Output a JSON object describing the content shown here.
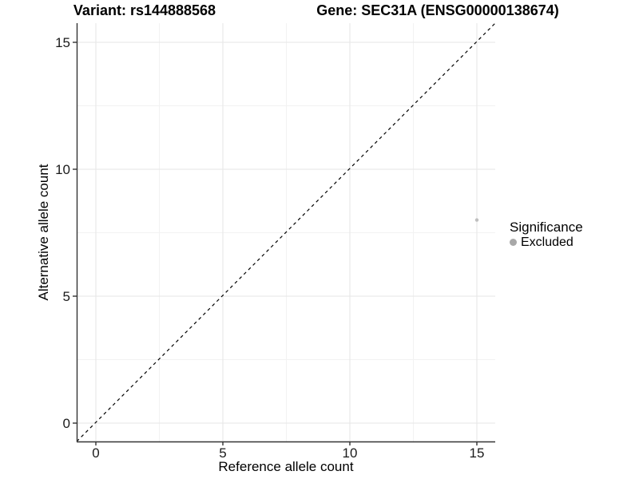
{
  "titles": {
    "left": "Variant: rs144888568",
    "right": "Gene: SEC31A (ENSG00000138674)"
  },
  "legend": {
    "title": "Significance",
    "items": [
      {
        "label": "Excluded",
        "color": "#a8a8a8"
      }
    ]
  },
  "chart_data": {
    "type": "scatter",
    "title_left": "Variant: rs144888568",
    "title_right": "Gene: SEC31A (ENSG00000138674)",
    "xlabel": "Reference allele count",
    "ylabel": "Alternative allele count",
    "xlim": [
      -0.75,
      15.7
    ],
    "ylim": [
      -0.75,
      15.7
    ],
    "x_ticks": [
      0,
      5,
      10,
      15
    ],
    "y_ticks": [
      0,
      5,
      10,
      15
    ],
    "x_minor_gridlines": [
      2.5,
      7.5,
      12.5
    ],
    "y_minor_gridlines": [
      2.5,
      7.5,
      12.5
    ],
    "grid": "major+minor",
    "legend_position": "right",
    "legend_title": "Significance",
    "series": [
      {
        "name": "Excluded",
        "color": "#bfbfbf",
        "points": [
          {
            "x": 15,
            "y": 8
          }
        ]
      }
    ],
    "reference_line": {
      "type": "identity y=x",
      "style": "dashed",
      "color": "#000000"
    }
  },
  "style": {
    "grid_major": "#e6e6e6",
    "grid_minor": "#f2f2f2",
    "axis_line": "#333333",
    "tick_color": "#333333",
    "point_color": "#bfbfbf",
    "legend_dot_color": "#a8a8a8"
  }
}
